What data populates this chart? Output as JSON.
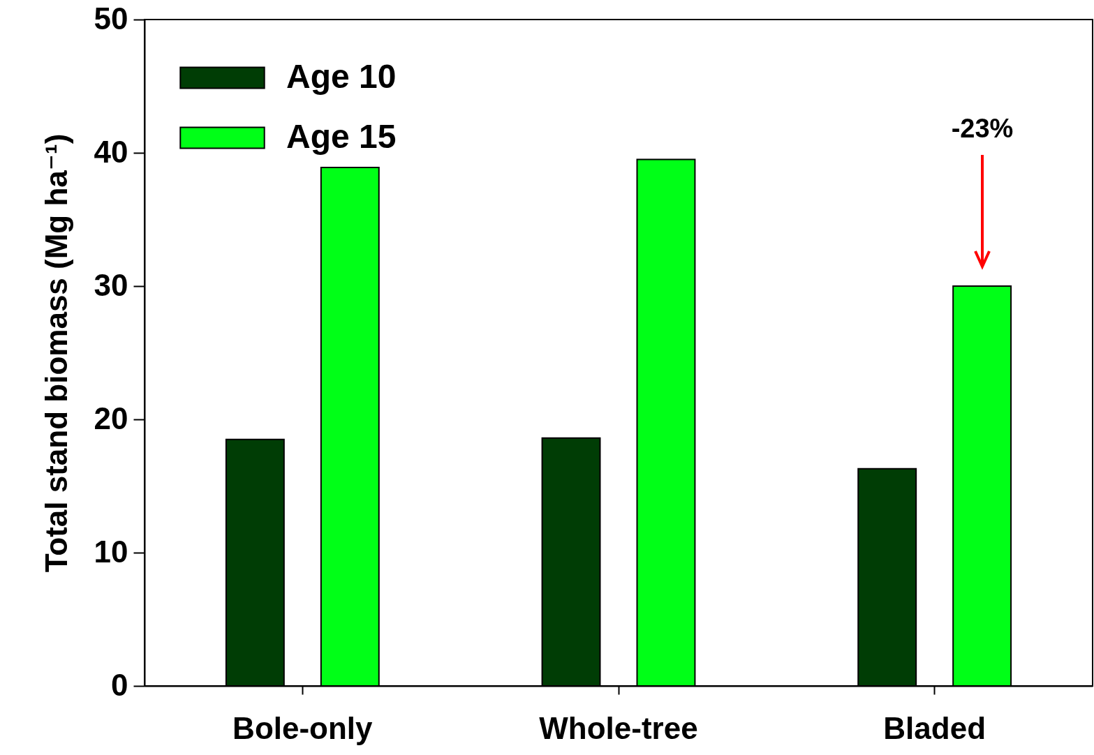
{
  "chart_data": {
    "type": "bar",
    "ylabel": "Total stand biomass (Mg ha⁻¹)",
    "categories": [
      "Bole-only",
      "Whole-tree",
      "Bladed"
    ],
    "series": [
      {
        "name": "Age 10",
        "color": "#003d05",
        "values": [
          18.5,
          18.6,
          16.3
        ]
      },
      {
        "name": "Age 15",
        "color": "#00ff17",
        "values": [
          38.9,
          39.5,
          30.0
        ]
      }
    ],
    "ylim": [
      0,
      50
    ],
    "yticks": [
      0,
      10,
      20,
      30,
      40,
      50
    ],
    "grid": false,
    "legend": "top left",
    "annotations": [
      "-23%"
    ]
  }
}
